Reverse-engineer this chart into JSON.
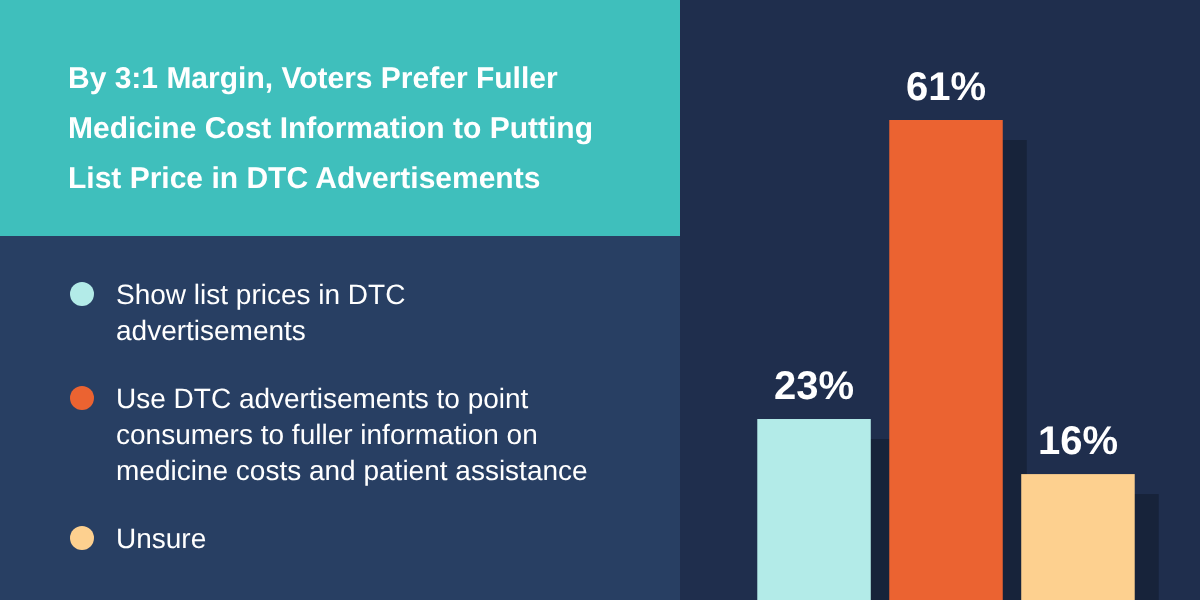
{
  "chart_data": {
    "type": "bar",
    "title": "By 3:1 Margin, Voters Prefer Fuller Medicine Cost Information to Putting List Price in DTC Advertisements",
    "categories": [
      null
    ],
    "series": [
      {
        "name": "Show list prices in DTC advertisements",
        "color": "#b3ebe8",
        "values": [
          23
        ],
        "value_labels": [
          "23%"
        ]
      },
      {
        "name": "Use DTC advertisements to point consumers to fuller information on medicine costs and patient assistance",
        "color": "#eb6331",
        "values": [
          61
        ],
        "value_labels": [
          "61%"
        ]
      },
      {
        "name": "Unsure",
        "color": "#fdd08f",
        "values": [
          16
        ],
        "value_labels": [
          "16%"
        ]
      }
    ],
    "legend": "left"
  }
}
